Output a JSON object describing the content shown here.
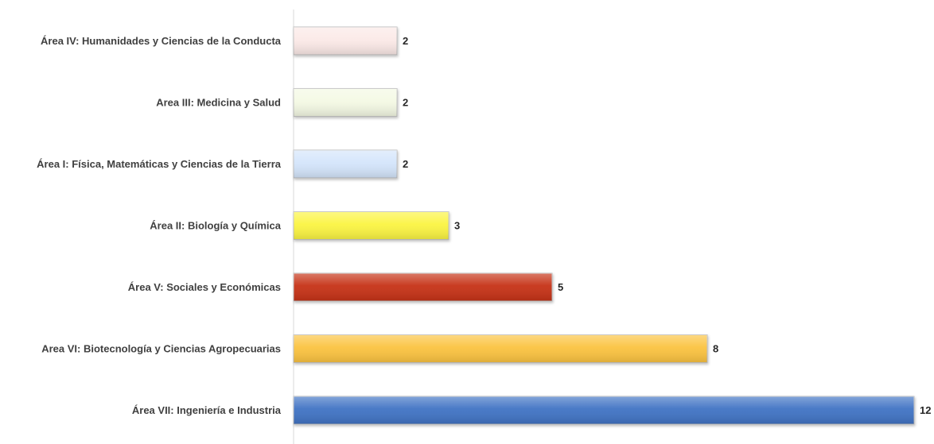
{
  "chart_data": {
    "type": "bar",
    "orientation": "horizontal",
    "categories": [
      "Área IV: Humanidades y Ciencias de la Conducta",
      "Area III: Medicina y Salud",
      "Área I: Física, Matemáticas y Ciencias de la Tierra",
      "Área II: Biología y Química",
      "Área V: Sociales y Económicas",
      "Area VI: Biotecnología y Ciencias Agropecuarias",
      "Área VII: Ingeniería e Industria"
    ],
    "values": [
      2,
      2,
      2,
      3,
      5,
      8,
      12
    ],
    "colors": [
      "#fbe9e7",
      "#f4f9e4",
      "#d4e5fb",
      "#fbf443",
      "#c63319",
      "#fbc33f",
      "#3f73c4"
    ],
    "xlim": [
      0,
      12
    ],
    "grid": false,
    "legend": false,
    "data_labels": true
  }
}
